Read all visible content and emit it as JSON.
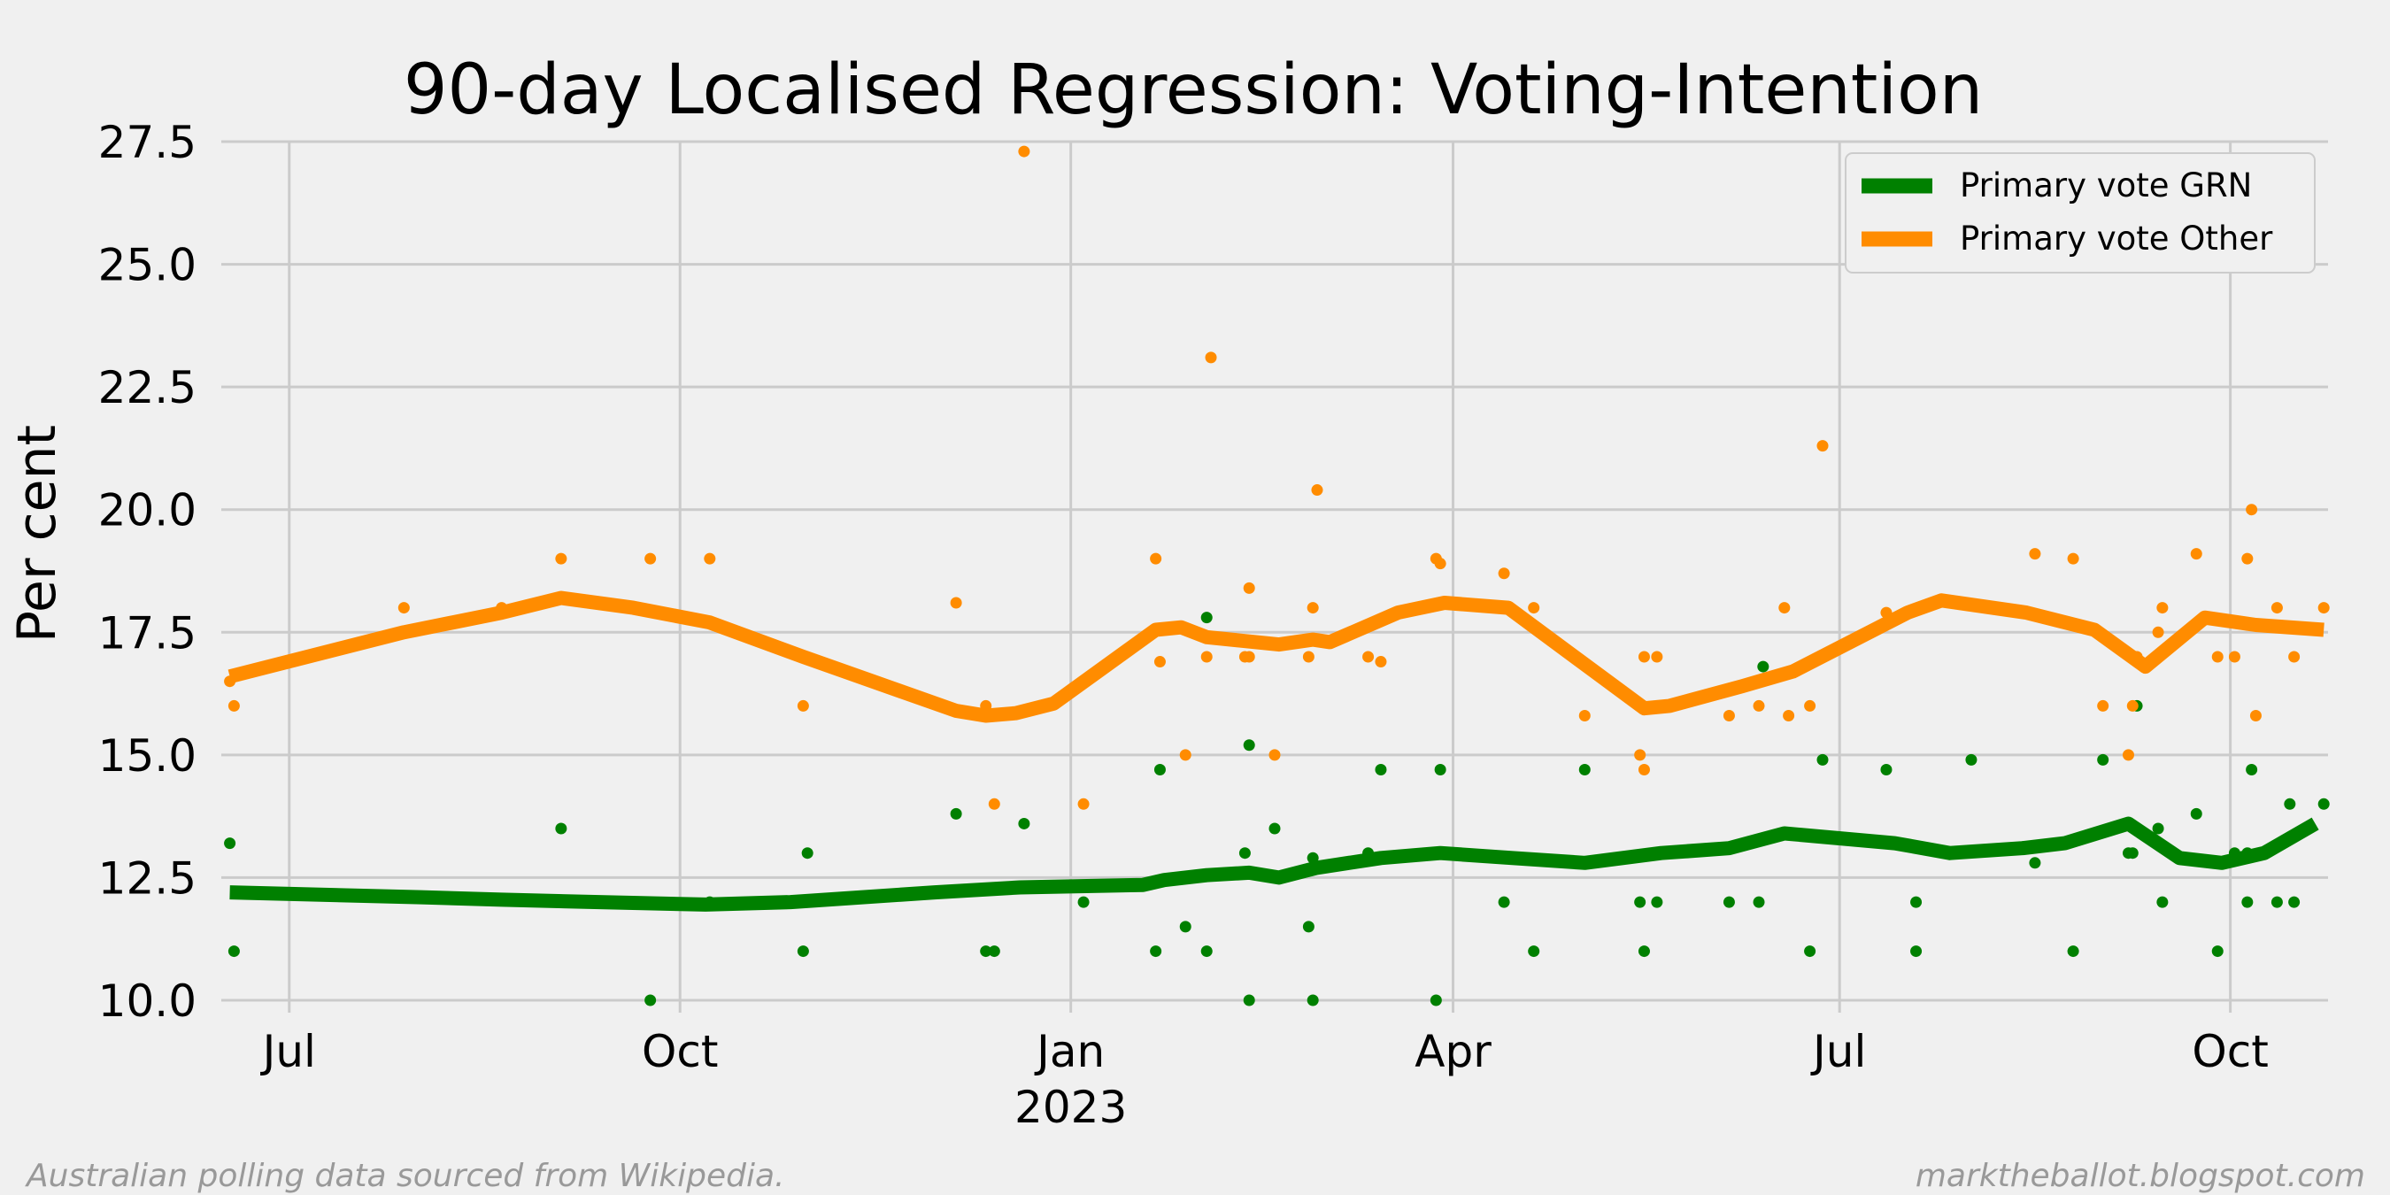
{
  "chart_data": {
    "type": "line",
    "title": "90-day Localised Regression: Voting-Intention",
    "xlabel": "",
    "ylabel": "Per cent",
    "ylim": [
      10.0,
      27.5
    ],
    "yticks": [
      10.0,
      12.5,
      15.0,
      17.5,
      20.0,
      22.5,
      25.0,
      27.5
    ],
    "ytick_labels": [
      "10.0",
      "12.5",
      "15.0",
      "17.5",
      "20.0",
      "22.5",
      "25.0",
      "27.5"
    ],
    "xlim": [
      "2022-06-15",
      "2023-10-24"
    ],
    "xticks": [
      {
        "date": "2022-07-01",
        "label": "Jul",
        "sublabel": ""
      },
      {
        "date": "2022-10-01",
        "label": "Oct",
        "sublabel": ""
      },
      {
        "date": "2023-01-01",
        "label": "Jan",
        "sublabel": "2023"
      },
      {
        "date": "2023-04-01",
        "label": "Apr",
        "sublabel": ""
      },
      {
        "date": "2023-07-01",
        "label": "Jul",
        "sublabel": ""
      },
      {
        "date": "2023-10-01",
        "label": "Oct",
        "sublabel": ""
      }
    ],
    "grid": true,
    "legend_position": "top-right",
    "footer_left": "Australian polling data sourced from Wikipedia.",
    "footer_right": "marktheballot.blogspot.com",
    "series": [
      {
        "name": "Primary vote GRN",
        "color": "#008000",
        "line": [
          [
            "2022-06-17",
            12.2
          ],
          [
            "2022-08-01",
            12.1
          ],
          [
            "2022-08-20",
            12.05
          ],
          [
            "2022-09-12",
            12.0
          ],
          [
            "2022-10-07",
            11.95
          ],
          [
            "2022-10-27",
            12.0
          ],
          [
            "2022-11-30",
            12.2
          ],
          [
            "2022-12-20",
            12.3
          ],
          [
            "2023-01-18",
            12.35
          ],
          [
            "2023-01-23",
            12.45
          ],
          [
            "2023-02-02",
            12.55
          ],
          [
            "2023-02-12",
            12.6
          ],
          [
            "2023-02-19",
            12.5
          ],
          [
            "2023-02-28",
            12.7
          ],
          [
            "2023-03-15",
            12.9
          ],
          [
            "2023-03-29",
            13.0
          ],
          [
            "2023-04-15",
            12.9
          ],
          [
            "2023-05-02",
            12.8
          ],
          [
            "2023-05-20",
            13.0
          ],
          [
            "2023-06-05",
            13.1
          ],
          [
            "2023-06-18",
            13.4
          ],
          [
            "2023-07-14",
            13.2
          ],
          [
            "2023-07-27",
            13.0
          ],
          [
            "2023-08-13",
            13.1
          ],
          [
            "2023-08-23",
            13.2
          ],
          [
            "2023-09-07",
            13.6
          ],
          [
            "2023-09-19",
            12.9
          ],
          [
            "2023-09-29",
            12.8
          ],
          [
            "2023-10-09",
            13.0
          ],
          [
            "2023-10-21",
            13.6
          ]
        ],
        "points": [
          [
            "2022-06-17",
            13.2
          ],
          [
            "2022-06-18",
            11.0
          ],
          [
            "2022-09-03",
            13.5
          ],
          [
            "2022-09-24",
            10.0
          ],
          [
            "2022-10-08",
            12.0
          ],
          [
            "2022-10-30",
            11.0
          ],
          [
            "2022-10-31",
            13.0
          ],
          [
            "2022-12-05",
            13.8
          ],
          [
            "2022-12-12",
            11.0
          ],
          [
            "2022-12-14",
            11.0
          ],
          [
            "2022-12-21",
            13.6
          ],
          [
            "2023-01-04",
            12.0
          ],
          [
            "2023-01-21",
            11.0
          ],
          [
            "2023-01-22",
            14.7
          ],
          [
            "2023-01-28",
            11.5
          ],
          [
            "2023-02-02",
            11.0
          ],
          [
            "2023-02-02",
            17.8
          ],
          [
            "2023-02-11",
            13.0
          ],
          [
            "2023-02-12",
            10.0
          ],
          [
            "2023-02-12",
            15.2
          ],
          [
            "2023-02-18",
            13.5
          ],
          [
            "2023-02-26",
            11.5
          ],
          [
            "2023-02-27",
            10.0
          ],
          [
            "2023-02-27",
            12.9
          ],
          [
            "2023-03-12",
            13.0
          ],
          [
            "2023-03-15",
            14.7
          ],
          [
            "2023-03-28",
            10.0
          ],
          [
            "2023-03-29",
            14.7
          ],
          [
            "2023-04-13",
            12.0
          ],
          [
            "2023-04-20",
            11.0
          ],
          [
            "2023-05-02",
            14.7
          ],
          [
            "2023-05-15",
            12.0
          ],
          [
            "2023-05-16",
            11.0
          ],
          [
            "2023-05-19",
            12.0
          ],
          [
            "2023-06-05",
            12.0
          ],
          [
            "2023-06-12",
            12.0
          ],
          [
            "2023-06-13",
            16.8
          ],
          [
            "2023-06-24",
            11.0
          ],
          [
            "2023-06-27",
            14.9
          ],
          [
            "2023-07-12",
            14.7
          ],
          [
            "2023-07-19",
            12.0
          ],
          [
            "2023-07-19",
            11.0
          ],
          [
            "2023-08-01",
            14.9
          ],
          [
            "2023-08-16",
            12.8
          ],
          [
            "2023-08-25",
            11.0
          ],
          [
            "2023-09-01",
            14.9
          ],
          [
            "2023-09-07",
            13.0
          ],
          [
            "2023-09-08",
            13.0
          ],
          [
            "2023-09-09",
            16.0
          ],
          [
            "2023-09-14",
            13.5
          ],
          [
            "2023-09-15",
            12.0
          ],
          [
            "2023-09-23",
            13.8
          ],
          [
            "2023-09-28",
            11.0
          ],
          [
            "2023-10-02",
            13.0
          ],
          [
            "2023-10-05",
            12.0
          ],
          [
            "2023-10-06",
            14.7
          ],
          [
            "2023-10-05",
            13.0
          ],
          [
            "2023-10-12",
            12.0
          ],
          [
            "2023-10-15",
            14.0
          ],
          [
            "2023-10-16",
            12.0
          ],
          [
            "2023-10-23",
            14.0
          ]
        ]
      },
      {
        "name": "Primary vote Other",
        "color": "#ff8c00",
        "line": [
          [
            "2022-06-17",
            16.6
          ],
          [
            "2022-07-28",
            17.5
          ],
          [
            "2022-08-20",
            17.9
          ],
          [
            "2022-09-03",
            18.2
          ],
          [
            "2022-09-20",
            18.0
          ],
          [
            "2022-10-08",
            17.7
          ],
          [
            "2022-10-30",
            17.0
          ],
          [
            "2022-12-05",
            15.9
          ],
          [
            "2022-12-12",
            15.8
          ],
          [
            "2022-12-19",
            15.85
          ],
          [
            "2022-12-28",
            16.05
          ],
          [
            "2023-01-21",
            17.55
          ],
          [
            "2023-01-27",
            17.6
          ],
          [
            "2023-02-02",
            17.4
          ],
          [
            "2023-02-19",
            17.25
          ],
          [
            "2023-02-27",
            17.35
          ],
          [
            "2023-03-03",
            17.3
          ],
          [
            "2023-03-19",
            17.9
          ],
          [
            "2023-03-30",
            18.1
          ],
          [
            "2023-04-14",
            18.0
          ],
          [
            "2023-05-16",
            15.95
          ],
          [
            "2023-05-22",
            16.0
          ],
          [
            "2023-06-08",
            16.4
          ],
          [
            "2023-06-20",
            16.7
          ],
          [
            "2023-07-17",
            17.9
          ],
          [
            "2023-07-25",
            18.15
          ],
          [
            "2023-08-14",
            17.9
          ],
          [
            "2023-08-30",
            17.55
          ],
          [
            "2023-09-11",
            16.8
          ],
          [
            "2023-09-25",
            17.8
          ],
          [
            "2023-10-07",
            17.65
          ],
          [
            "2023-10-23",
            17.55
          ]
        ],
        "points": [
          [
            "2022-06-17",
            16.5
          ],
          [
            "2022-06-18",
            16.0
          ],
          [
            "2022-07-28",
            18.0
          ],
          [
            "2022-08-20",
            18.0
          ],
          [
            "2022-09-03",
            19.0
          ],
          [
            "2022-09-24",
            19.0
          ],
          [
            "2022-10-08",
            19.0
          ],
          [
            "2022-10-30",
            16.0
          ],
          [
            "2022-12-05",
            18.1
          ],
          [
            "2022-12-12",
            16.0
          ],
          [
            "2022-12-14",
            14.0
          ],
          [
            "2022-12-21",
            27.3
          ],
          [
            "2023-01-04",
            14.0
          ],
          [
            "2023-01-21",
            19.0
          ],
          [
            "2023-01-22",
            16.9
          ],
          [
            "2023-01-28",
            15.0
          ],
          [
            "2023-02-02",
            17.0
          ],
          [
            "2023-02-03",
            23.1
          ],
          [
            "2023-02-11",
            17.0
          ],
          [
            "2023-02-12",
            18.4
          ],
          [
            "2023-02-12",
            17.0
          ],
          [
            "2023-02-18",
            15.0
          ],
          [
            "2023-02-26",
            17.0
          ],
          [
            "2023-02-27",
            18.0
          ],
          [
            "2023-02-28",
            20.4
          ],
          [
            "2023-03-12",
            17.0
          ],
          [
            "2023-03-15",
            16.9
          ],
          [
            "2023-03-28",
            19.0
          ],
          [
            "2023-03-29",
            18.9
          ],
          [
            "2023-04-13",
            18.7
          ],
          [
            "2023-04-20",
            18.0
          ],
          [
            "2023-05-02",
            15.8
          ],
          [
            "2023-05-15",
            15.0
          ],
          [
            "2023-05-16",
            17.0
          ],
          [
            "2023-05-16",
            14.7
          ],
          [
            "2023-05-19",
            17.0
          ],
          [
            "2023-06-05",
            15.8
          ],
          [
            "2023-06-12",
            16.0
          ],
          [
            "2023-06-18",
            18.0
          ],
          [
            "2023-06-19",
            15.8
          ],
          [
            "2023-06-24",
            16.0
          ],
          [
            "2023-06-27",
            21.3
          ],
          [
            "2023-07-12",
            17.9
          ],
          [
            "2023-08-16",
            19.1
          ],
          [
            "2023-08-25",
            19.0
          ],
          [
            "2023-09-01",
            16.0
          ],
          [
            "2023-09-07",
            15.0
          ],
          [
            "2023-09-08",
            16.0
          ],
          [
            "2023-09-09",
            17.0
          ],
          [
            "2023-09-14",
            17.5
          ],
          [
            "2023-09-15",
            18.0
          ],
          [
            "2023-09-23",
            19.1
          ],
          [
            "2023-09-28",
            17.0
          ],
          [
            "2023-10-02",
            17.0
          ],
          [
            "2023-10-05",
            19.0
          ],
          [
            "2023-10-06",
            20.0
          ],
          [
            "2023-10-07",
            15.8
          ],
          [
            "2023-10-12",
            18.0
          ],
          [
            "2023-10-16",
            17.0
          ],
          [
            "2023-10-23",
            18.0
          ]
        ]
      }
    ]
  }
}
